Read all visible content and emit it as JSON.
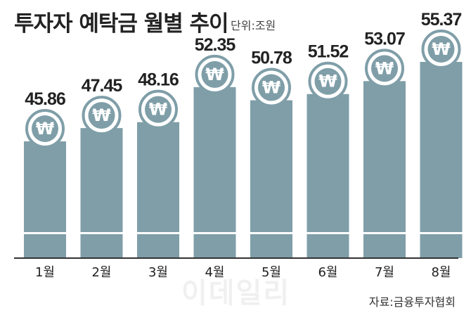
{
  "header": {
    "title": "투자자 예탁금 월별 추이",
    "unit": "단위:조원"
  },
  "chart_data": {
    "type": "bar",
    "categories": [
      "1월",
      "2월",
      "3월",
      "4월",
      "5월",
      "6월",
      "7월",
      "8월"
    ],
    "values": [
      45.86,
      47.45,
      48.16,
      52.35,
      50.78,
      51.52,
      53.07,
      55.37
    ],
    "value_labels": [
      "45.86",
      "47.45",
      "48.16",
      "52.35",
      "50.78",
      "51.52",
      "53.07",
      "55.37"
    ],
    "title": "투자자 예탁금 월별 추이",
    "unit": "단위:조원",
    "xlabel": "",
    "ylabel": "",
    "grid": false,
    "bar_color": "#7f9ea8",
    "icon_glyph": "₩"
  },
  "footer": {
    "source": "자료:금융투자협회",
    "watermark": "이데일리"
  },
  "colors": {
    "bar": "#7f9ea8",
    "axis": "#333333",
    "text": "#222222"
  }
}
